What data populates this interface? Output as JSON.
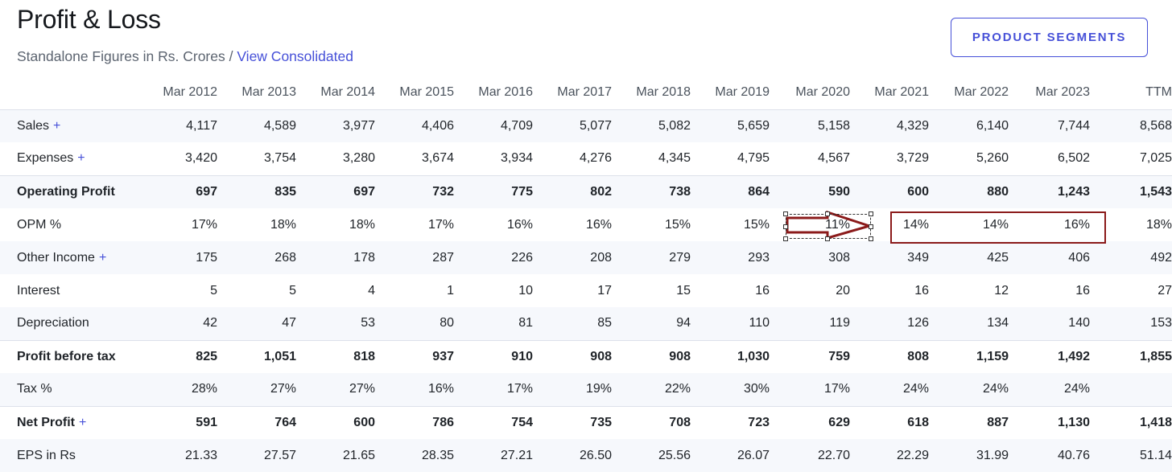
{
  "header": {
    "title": "Profit & Loss",
    "subtitle_text": "Standalone Figures in Rs. Crores / ",
    "subtitle_link": "View Consolidated",
    "segments_button": "PRODUCT SEGMENTS"
  },
  "table": {
    "columns": [
      "",
      "Mar 2012",
      "Mar 2013",
      "Mar 2014",
      "Mar 2015",
      "Mar 2016",
      "Mar 2017",
      "Mar 2018",
      "Mar 2019",
      "Mar 2020",
      "Mar 2021",
      "Mar 2022",
      "Mar 2023",
      "TTM"
    ],
    "rows": [
      {
        "label": "Sales",
        "plus": "+",
        "values": [
          "4,117",
          "4,589",
          "3,977",
          "4,406",
          "4,709",
          "5,077",
          "5,082",
          "5,659",
          "5,158",
          "4,329",
          "6,140",
          "7,744",
          "8,568"
        ]
      },
      {
        "label": "Expenses",
        "plus": "+",
        "values": [
          "3,420",
          "3,754",
          "3,280",
          "3,674",
          "3,934",
          "4,276",
          "4,345",
          "4,795",
          "4,567",
          "3,729",
          "5,260",
          "6,502",
          "7,025"
        ]
      },
      {
        "label": "Operating Profit",
        "plus": "",
        "values": [
          "697",
          "835",
          "697",
          "732",
          "775",
          "802",
          "738",
          "864",
          "590",
          "600",
          "880",
          "1,243",
          "1,543"
        ]
      },
      {
        "label": "OPM %",
        "plus": "",
        "values": [
          "17%",
          "18%",
          "18%",
          "17%",
          "16%",
          "16%",
          "15%",
          "15%",
          "11%",
          "14%",
          "14%",
          "16%",
          "18%"
        ]
      },
      {
        "label": "Other Income",
        "plus": "+",
        "values": [
          "175",
          "268",
          "178",
          "287",
          "226",
          "208",
          "279",
          "293",
          "308",
          "349",
          "425",
          "406",
          "492"
        ]
      },
      {
        "label": "Interest",
        "plus": "",
        "values": [
          "5",
          "5",
          "4",
          "1",
          "10",
          "17",
          "15",
          "16",
          "20",
          "16",
          "12",
          "16",
          "27"
        ]
      },
      {
        "label": "Depreciation",
        "plus": "",
        "values": [
          "42",
          "47",
          "53",
          "80",
          "81",
          "85",
          "94",
          "110",
          "119",
          "126",
          "134",
          "140",
          "153"
        ]
      },
      {
        "label": "Profit before tax",
        "plus": "",
        "values": [
          "825",
          "1,051",
          "818",
          "937",
          "910",
          "908",
          "908",
          "1,030",
          "759",
          "808",
          "1,159",
          "1,492",
          "1,855"
        ]
      },
      {
        "label": "Tax %",
        "plus": "",
        "values": [
          "28%",
          "27%",
          "27%",
          "16%",
          "17%",
          "19%",
          "22%",
          "30%",
          "17%",
          "24%",
          "24%",
          "24%",
          ""
        ]
      },
      {
        "label": "Net Profit",
        "plus": "+",
        "values": [
          "591",
          "764",
          "600",
          "786",
          "754",
          "735",
          "708",
          "723",
          "629",
          "618",
          "887",
          "1,130",
          "1,418"
        ]
      },
      {
        "label": "EPS in Rs",
        "plus": "",
        "values": [
          "21.33",
          "27.57",
          "21.65",
          "28.35",
          "27.21",
          "26.50",
          "25.56",
          "26.07",
          "22.70",
          "22.29",
          "31.99",
          "40.76",
          "51.14"
        ]
      }
    ]
  },
  "annotations": {
    "arrow_color": "#8b1a1a",
    "rectangle_color": "#8b1a1a"
  }
}
